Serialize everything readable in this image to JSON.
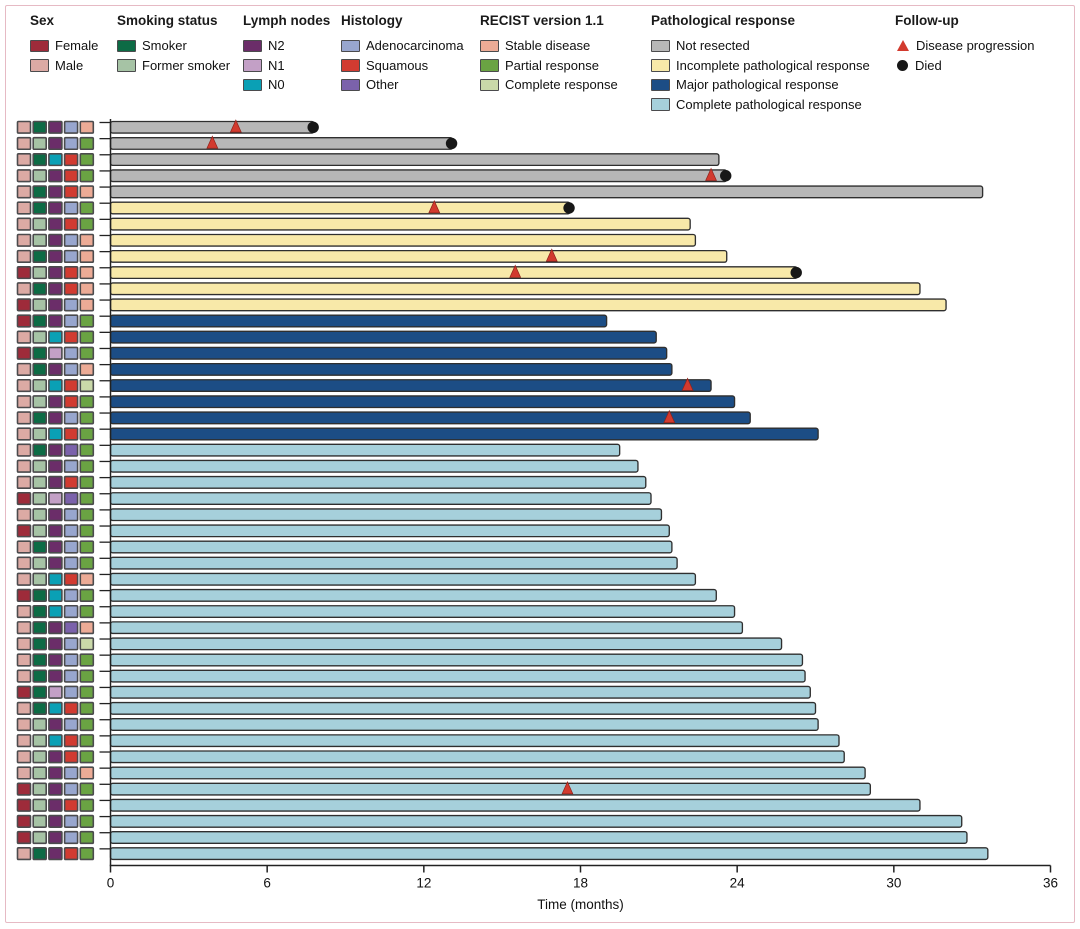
{
  "figure": {
    "xlabel": "Time (months)"
  },
  "legend": {
    "groups": [
      {
        "title": "Sex",
        "items": [
          {
            "label": "Female",
            "key": "Female"
          },
          {
            "label": "Male",
            "key": "Male"
          }
        ]
      },
      {
        "title": "Smoking status",
        "items": [
          {
            "label": "Smoker",
            "key": "Smoker"
          },
          {
            "label": "Former smoker",
            "key": "Former smoker"
          }
        ]
      },
      {
        "title": "Lymph nodes",
        "items": [
          {
            "label": "N2",
            "key": "N2"
          },
          {
            "label": "N1",
            "key": "N1"
          },
          {
            "label": "N0",
            "key": "N0"
          }
        ]
      },
      {
        "title": "Histology",
        "items": [
          {
            "label": "Adenocarcinoma",
            "key": "Adenocarcinoma"
          },
          {
            "label": "Squamous",
            "key": "Squamous"
          },
          {
            "label": "Other",
            "key": "Other"
          }
        ]
      },
      {
        "title": "RECIST version 1.1",
        "items": [
          {
            "label": "Stable disease",
            "key": "Stable disease"
          },
          {
            "label": "Partial response",
            "key": "Partial response"
          },
          {
            "label": "Complete response",
            "key": "Complete response"
          }
        ]
      },
      {
        "title": "Pathological response",
        "items": [
          {
            "label": "Not resected",
            "key": "Not resected"
          },
          {
            "label": "Incomplete pathological response",
            "key": "Incomplete pathological response"
          },
          {
            "label": "Major pathological response",
            "key": "Major pathological response"
          },
          {
            "label": "Complete pathological response",
            "key": "Complete pathological response"
          }
        ]
      },
      {
        "title": "Follow-up",
        "items": [
          {
            "label": "Disease progression",
            "key": "Disease progression",
            "marker": "triangle"
          },
          {
            "label": "Died",
            "key": "Died",
            "marker": "circle"
          }
        ]
      }
    ]
  },
  "chart_data": {
    "type": "bar",
    "variant": "swimmer-plot",
    "orientation": "horizontal",
    "xlabel": "Time (months)",
    "xlim": [
      0,
      36
    ],
    "xticks": [
      0,
      6,
      12,
      18,
      24,
      30,
      36
    ],
    "grid": false,
    "attribute_order": [
      "sex",
      "smoking",
      "lymph",
      "histology",
      "recist"
    ],
    "colors": {
      "Female": "#9e2b3a",
      "Male": "#dcaaa4",
      "Smoker": "#0d6b45",
      "Former smoker": "#a6c3a5",
      "N2": "#6b2d69",
      "N1": "#c3a0c6",
      "N0": "#0aa0b5",
      "Adenocarcinoma": "#98a6ce",
      "Squamous": "#d13b31",
      "Other": "#7b62ab",
      "Stable disease": "#ecab96",
      "Partial response": "#6aa343",
      "Complete response": "#cad9a9",
      "Not resected": "#b7b7b7",
      "Incomplete pathological response": "#f8e9a9",
      "Major pathological response": "#1c4d85",
      "Complete pathological response": "#a6d0db",
      "Disease progression": "#d23a2e",
      "Died": "#171717"
    },
    "patients": [
      {
        "sex": "Male",
        "smoking": "Smoker",
        "lymph": "N2",
        "histology": "Adenocarcinoma",
        "recist": "Stable disease",
        "response": "Not resected",
        "months": 7.8,
        "prog": 4.8,
        "died": true
      },
      {
        "sex": "Male",
        "smoking": "Former smoker",
        "lymph": "N2",
        "histology": "Adenocarcinoma",
        "recist": "Partial response",
        "response": "Not resected",
        "months": 13.1,
        "prog": 3.9,
        "died": true
      },
      {
        "sex": "Male",
        "smoking": "Smoker",
        "lymph": "N0",
        "histology": "Squamous",
        "recist": "Partial response",
        "response": "Not resected",
        "months": 23.3,
        "prog": null,
        "died": false
      },
      {
        "sex": "Male",
        "smoking": "Former smoker",
        "lymph": "N2",
        "histology": "Squamous",
        "recist": "Partial response",
        "response": "Not resected",
        "months": 23.6,
        "prog": 23.0,
        "died": true
      },
      {
        "sex": "Male",
        "smoking": "Smoker",
        "lymph": "N2",
        "histology": "Squamous",
        "recist": "Stable disease",
        "response": "Not resected",
        "months": 33.4,
        "prog": null,
        "died": false
      },
      {
        "sex": "Male",
        "smoking": "Smoker",
        "lymph": "N2",
        "histology": "Adenocarcinoma",
        "recist": "Partial response",
        "response": "Incomplete pathological response",
        "months": 17.6,
        "prog": 12.4,
        "died": true
      },
      {
        "sex": "Male",
        "smoking": "Former smoker",
        "lymph": "N2",
        "histology": "Squamous",
        "recist": "Partial response",
        "response": "Incomplete pathological response",
        "months": 22.2,
        "prog": null,
        "died": false
      },
      {
        "sex": "Male",
        "smoking": "Former smoker",
        "lymph": "N2",
        "histology": "Adenocarcinoma",
        "recist": "Stable disease",
        "response": "Incomplete pathological response",
        "months": 22.4,
        "prog": null,
        "died": false
      },
      {
        "sex": "Male",
        "smoking": "Smoker",
        "lymph": "N2",
        "histology": "Adenocarcinoma",
        "recist": "Stable disease",
        "response": "Incomplete pathological response",
        "months": 23.6,
        "prog": 16.9,
        "died": false
      },
      {
        "sex": "Female",
        "smoking": "Former smoker",
        "lymph": "N2",
        "histology": "Squamous",
        "recist": "Stable disease",
        "response": "Incomplete pathological response",
        "months": 26.3,
        "prog": 15.5,
        "died": true
      },
      {
        "sex": "Male",
        "smoking": "Smoker",
        "lymph": "N2",
        "histology": "Squamous",
        "recist": "Stable disease",
        "response": "Incomplete pathological response",
        "months": 31.0,
        "prog": null,
        "died": false
      },
      {
        "sex": "Female",
        "smoking": "Former smoker",
        "lymph": "N2",
        "histology": "Adenocarcinoma",
        "recist": "Stable disease",
        "response": "Incomplete pathological response",
        "months": 32.0,
        "prog": null,
        "died": false
      },
      {
        "sex": "Female",
        "smoking": "Smoker",
        "lymph": "N2",
        "histology": "Adenocarcinoma",
        "recist": "Partial response",
        "response": "Major pathological response",
        "months": 19.0,
        "prog": null,
        "died": false
      },
      {
        "sex": "Male",
        "smoking": "Former smoker",
        "lymph": "N0",
        "histology": "Squamous",
        "recist": "Partial response",
        "response": "Major pathological response",
        "months": 20.9,
        "prog": null,
        "died": false
      },
      {
        "sex": "Female",
        "smoking": "Smoker",
        "lymph": "N1",
        "histology": "Adenocarcinoma",
        "recist": "Partial response",
        "response": "Major pathological response",
        "months": 21.3,
        "prog": null,
        "died": false
      },
      {
        "sex": "Male",
        "smoking": "Smoker",
        "lymph": "N2",
        "histology": "Adenocarcinoma",
        "recist": "Stable disease",
        "response": "Major pathological response",
        "months": 21.5,
        "prog": null,
        "died": false
      },
      {
        "sex": "Male",
        "smoking": "Former smoker",
        "lymph": "N0",
        "histology": "Squamous",
        "recist": "Complete response",
        "response": "Major pathological response",
        "months": 23.0,
        "prog": 22.1,
        "died": false
      },
      {
        "sex": "Male",
        "smoking": "Former smoker",
        "lymph": "N2",
        "histology": "Squamous",
        "recist": "Partial response",
        "response": "Major pathological response",
        "months": 23.9,
        "prog": null,
        "died": false
      },
      {
        "sex": "Male",
        "smoking": "Smoker",
        "lymph": "N2",
        "histology": "Adenocarcinoma",
        "recist": "Partial response",
        "response": "Major pathological response",
        "months": 24.5,
        "prog": 21.4,
        "died": false
      },
      {
        "sex": "Male",
        "smoking": "Former smoker",
        "lymph": "N0",
        "histology": "Squamous",
        "recist": "Partial response",
        "response": "Major pathological response",
        "months": 27.1,
        "prog": null,
        "died": false
      },
      {
        "sex": "Male",
        "smoking": "Smoker",
        "lymph": "N2",
        "histology": "Other",
        "recist": "Partial response",
        "response": "Complete pathological response",
        "months": 19.5,
        "prog": null,
        "died": false
      },
      {
        "sex": "Male",
        "smoking": "Former smoker",
        "lymph": "N2",
        "histology": "Adenocarcinoma",
        "recist": "Partial response",
        "response": "Complete pathological response",
        "months": 20.2,
        "prog": null,
        "died": false
      },
      {
        "sex": "Male",
        "smoking": "Former smoker",
        "lymph": "N2",
        "histology": "Squamous",
        "recist": "Partial response",
        "response": "Complete pathological response",
        "months": 20.5,
        "prog": null,
        "died": false
      },
      {
        "sex": "Female",
        "smoking": "Former smoker",
        "lymph": "N1",
        "histology": "Other",
        "recist": "Partial response",
        "response": "Complete pathological response",
        "months": 20.7,
        "prog": null,
        "died": false
      },
      {
        "sex": "Male",
        "smoking": "Former smoker",
        "lymph": "N2",
        "histology": "Adenocarcinoma",
        "recist": "Partial response",
        "response": "Complete pathological response",
        "months": 21.1,
        "prog": null,
        "died": false
      },
      {
        "sex": "Female",
        "smoking": "Former smoker",
        "lymph": "N2",
        "histology": "Adenocarcinoma",
        "recist": "Partial response",
        "response": "Complete pathological response",
        "months": 21.4,
        "prog": null,
        "died": false
      },
      {
        "sex": "Male",
        "smoking": "Smoker",
        "lymph": "N2",
        "histology": "Adenocarcinoma",
        "recist": "Partial response",
        "response": "Complete pathological response",
        "months": 21.5,
        "prog": null,
        "died": false
      },
      {
        "sex": "Male",
        "smoking": "Former smoker",
        "lymph": "N2",
        "histology": "Adenocarcinoma",
        "recist": "Partial response",
        "response": "Complete pathological response",
        "months": 21.7,
        "prog": null,
        "died": false
      },
      {
        "sex": "Male",
        "smoking": "Former smoker",
        "lymph": "N0",
        "histology": "Squamous",
        "recist": "Stable disease",
        "response": "Complete pathological response",
        "months": 22.4,
        "prog": null,
        "died": false
      },
      {
        "sex": "Female",
        "smoking": "Smoker",
        "lymph": "N0",
        "histology": "Adenocarcinoma",
        "recist": "Partial response",
        "response": "Complete pathological response",
        "months": 23.2,
        "prog": null,
        "died": false
      },
      {
        "sex": "Male",
        "smoking": "Smoker",
        "lymph": "N0",
        "histology": "Adenocarcinoma",
        "recist": "Partial response",
        "response": "Complete pathological response",
        "months": 23.9,
        "prog": null,
        "died": false
      },
      {
        "sex": "Male",
        "smoking": "Smoker",
        "lymph": "N2",
        "histology": "Other",
        "recist": "Stable disease",
        "response": "Complete pathological response",
        "months": 24.2,
        "prog": null,
        "died": false
      },
      {
        "sex": "Male",
        "smoking": "Smoker",
        "lymph": "N2",
        "histology": "Adenocarcinoma",
        "recist": "Complete response",
        "response": "Complete pathological response",
        "months": 25.7,
        "prog": null,
        "died": false
      },
      {
        "sex": "Male",
        "smoking": "Smoker",
        "lymph": "N2",
        "histology": "Adenocarcinoma",
        "recist": "Partial response",
        "response": "Complete pathological response",
        "months": 26.5,
        "prog": null,
        "died": false
      },
      {
        "sex": "Male",
        "smoking": "Smoker",
        "lymph": "N2",
        "histology": "Adenocarcinoma",
        "recist": "Partial response",
        "response": "Complete pathological response",
        "months": 26.6,
        "prog": null,
        "died": false
      },
      {
        "sex": "Female",
        "smoking": "Smoker",
        "lymph": "N1",
        "histology": "Adenocarcinoma",
        "recist": "Partial response",
        "response": "Complete pathological response",
        "months": 26.8,
        "prog": null,
        "died": false
      },
      {
        "sex": "Male",
        "smoking": "Smoker",
        "lymph": "N0",
        "histology": "Squamous",
        "recist": "Partial response",
        "response": "Complete pathological response",
        "months": 27.0,
        "prog": null,
        "died": false
      },
      {
        "sex": "Male",
        "smoking": "Former smoker",
        "lymph": "N2",
        "histology": "Adenocarcinoma",
        "recist": "Partial response",
        "response": "Complete pathological response",
        "months": 27.1,
        "prog": null,
        "died": false
      },
      {
        "sex": "Male",
        "smoking": "Former smoker",
        "lymph": "N0",
        "histology": "Squamous",
        "recist": "Partial response",
        "response": "Complete pathological response",
        "months": 27.9,
        "prog": null,
        "died": false
      },
      {
        "sex": "Male",
        "smoking": "Former smoker",
        "lymph": "N2",
        "histology": "Squamous",
        "recist": "Partial response",
        "response": "Complete pathological response",
        "months": 28.1,
        "prog": null,
        "died": false
      },
      {
        "sex": "Male",
        "smoking": "Former smoker",
        "lymph": "N2",
        "histology": "Adenocarcinoma",
        "recist": "Stable disease",
        "response": "Complete pathological response",
        "months": 28.9,
        "prog": null,
        "died": false
      },
      {
        "sex": "Female",
        "smoking": "Former smoker",
        "lymph": "N2",
        "histology": "Adenocarcinoma",
        "recist": "Partial response",
        "response": "Complete pathological response",
        "months": 29.1,
        "prog": 17.5,
        "died": false
      },
      {
        "sex": "Female",
        "smoking": "Former smoker",
        "lymph": "N2",
        "histology": "Squamous",
        "recist": "Partial response",
        "response": "Complete pathological response",
        "months": 31.0,
        "prog": null,
        "died": false
      },
      {
        "sex": "Female",
        "smoking": "Former smoker",
        "lymph": "N2",
        "histology": "Adenocarcinoma",
        "recist": "Partial response",
        "response": "Complete pathological response",
        "months": 32.6,
        "prog": null,
        "died": false
      },
      {
        "sex": "Female",
        "smoking": "Former smoker",
        "lymph": "N2",
        "histology": "Adenocarcinoma",
        "recist": "Partial response",
        "response": "Complete pathological response",
        "months": 32.8,
        "prog": null,
        "died": false
      },
      {
        "sex": "Male",
        "smoking": "Smoker",
        "lymph": "N2",
        "histology": "Squamous",
        "recist": "Partial response",
        "response": "Complete pathological response",
        "months": 33.6,
        "prog": null,
        "died": false
      }
    ]
  }
}
